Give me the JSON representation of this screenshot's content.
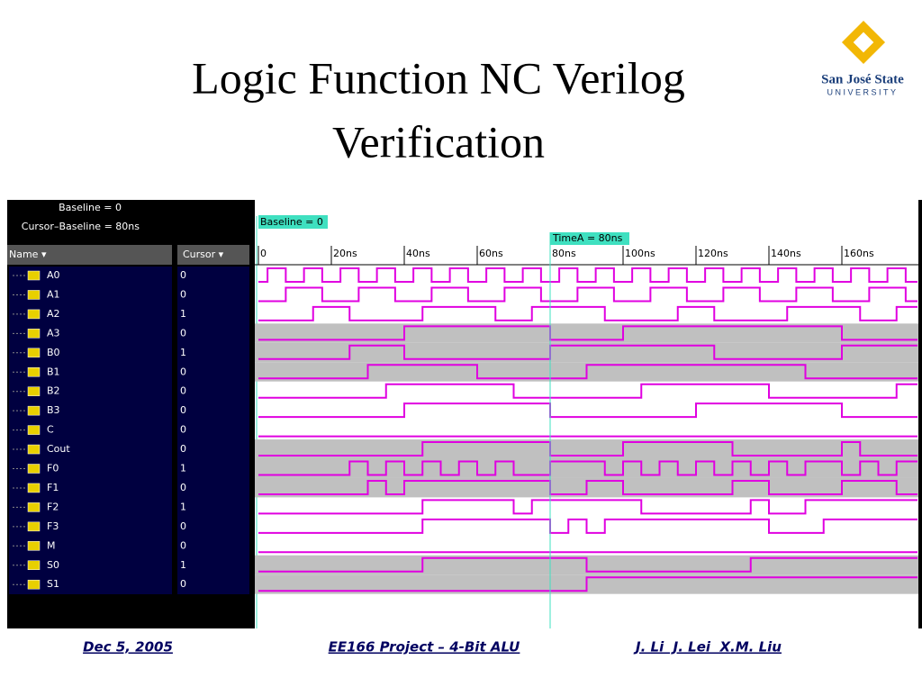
{
  "header": {
    "title_line1": "Logic Function NC Verilog",
    "title_line2": "Verification",
    "logo_name": "San José State",
    "logo_sub": "UNIVERSITY"
  },
  "viewer": {
    "baseline_info": "Baseline = 0",
    "cursor_info": "Cursor–Baseline = 80ns",
    "name_col": "Name ▾",
    "cursor_col": "Cursor ▾",
    "baseline_tag": "Baseline = 0",
    "cursor_tag": "TimeA = 80ns",
    "cursor_time": 80,
    "time_ticks": [
      0,
      {
        "value": 20,
        "label": "20ns"
      },
      {
        "value": 40,
        "label": "40ns"
      },
      {
        "value": 60,
        "label": "60ns"
      },
      {
        "value": 80,
        "label": "80ns"
      },
      {
        "value": 100,
        "label": "100ns"
      },
      {
        "value": 120,
        "label": "120ns"
      },
      {
        "value": 140,
        "label": "140ns"
      },
      {
        "value": 160,
        "label": "160ns"
      }
    ],
    "signals": [
      {
        "name": "A0",
        "cursor": "0",
        "shaded": false,
        "edges": [
          2.5,
          7.5,
          12.5,
          17.5,
          22.5,
          27.5,
          32.5,
          37.5,
          42.5,
          47.5,
          52.5,
          57.5,
          62.5,
          67.5,
          72.5,
          77.5,
          82.5,
          87.5,
          92.5,
          97.5,
          102.5,
          107.5,
          112.5,
          117.5,
          122.5,
          127.5,
          132.5,
          137.5,
          142.5,
          147.5,
          152.5,
          157.5,
          162.5,
          167.5,
          172.5,
          177.5
        ]
      },
      {
        "name": "A1",
        "cursor": "0",
        "shaded": false,
        "edges": [
          7.5,
          17.5,
          27.5,
          37.5,
          47.5,
          57.5,
          67.5,
          77.5,
          87.5,
          97.5,
          107.5,
          117.5,
          127.5,
          137.5,
          147.5,
          157.5,
          167.5,
          177.5
        ]
      },
      {
        "name": "A2",
        "cursor": "1",
        "shaded": false,
        "edges": [
          15,
          25,
          45,
          65,
          75,
          95,
          115,
          125,
          145,
          165,
          175
        ]
      },
      {
        "name": "A3",
        "cursor": "0",
        "shaded": true,
        "edges": [
          40,
          80,
          100,
          160
        ]
      },
      {
        "name": "B0",
        "cursor": "1",
        "shaded": true,
        "edges": [
          25,
          40,
          80,
          125,
          160
        ]
      },
      {
        "name": "B1",
        "cursor": "0",
        "shaded": true,
        "edges": [
          30,
          60,
          90,
          150
        ]
      },
      {
        "name": "B2",
        "cursor": "0",
        "shaded": false,
        "edges": [
          35,
          70,
          105,
          140,
          175
        ]
      },
      {
        "name": "B3",
        "cursor": "0",
        "shaded": false,
        "edges": [
          40,
          80,
          120,
          160
        ]
      },
      {
        "name": "C",
        "cursor": "0",
        "shaded": false,
        "edges": []
      },
      {
        "name": "Cout",
        "cursor": "0",
        "shaded": true,
        "edges": [
          45,
          80,
          100,
          130,
          160,
          165
        ]
      },
      {
        "name": "F0",
        "cursor": "1",
        "shaded": true,
        "edges": [
          25,
          30,
          35,
          40,
          45,
          50,
          55,
          60,
          65,
          70,
          80,
          95,
          100,
          105,
          110,
          115,
          120,
          125,
          130,
          135,
          140,
          145,
          150,
          160,
          165,
          170,
          175
        ]
      },
      {
        "name": "F1",
        "cursor": "0",
        "shaded": true,
        "edges": [
          30,
          35,
          40,
          80,
          90,
          100,
          130,
          140,
          160,
          175
        ]
      },
      {
        "name": "F2",
        "cursor": "1",
        "shaded": false,
        "edges": [
          45,
          70,
          75,
          105,
          135,
          140,
          150
        ]
      },
      {
        "name": "F3",
        "cursor": "0",
        "shaded": false,
        "edges": [
          45,
          80,
          85,
          90,
          95,
          140,
          155
        ]
      },
      {
        "name": "M",
        "cursor": "0",
        "shaded": false,
        "edges": []
      },
      {
        "name": "S0",
        "cursor": "1",
        "shaded": true,
        "edges": [
          45,
          90,
          135
        ]
      },
      {
        "name": "S1",
        "cursor": "0",
        "shaded": true,
        "edges": [
          90
        ]
      }
    ]
  },
  "footer": {
    "date": "Dec 5, 2005",
    "project": "EE166 Project – 4-Bit ALU",
    "authors": "J. Li  J. Lei  X.M. Liu"
  }
}
